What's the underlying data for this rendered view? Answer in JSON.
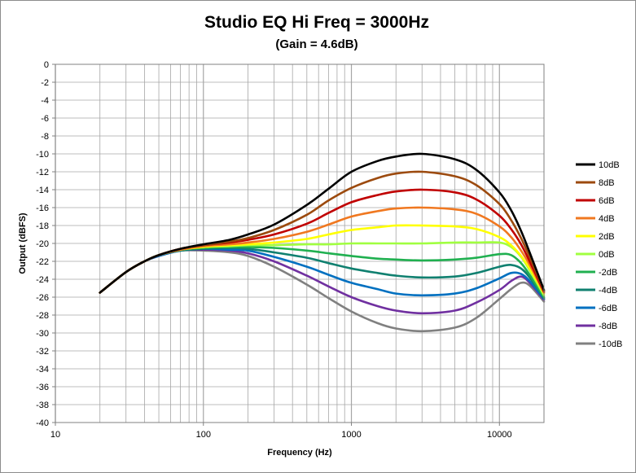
{
  "chart_data": {
    "type": "line",
    "title": "Studio EQ Hi Freq = 3000Hz",
    "subtitle": "(Gain = 4.6dB)",
    "xlabel": "Frequency (Hz)",
    "ylabel": "Output (dBFS)",
    "x_scale": "log",
    "xlim": [
      10,
      20000
    ],
    "ylim": [
      -40,
      0
    ],
    "x_ticks": [
      "10",
      "100",
      "1000",
      "10000"
    ],
    "y_ticks": [
      "0",
      "-2",
      "-4",
      "-6",
      "-8",
      "-10",
      "-12",
      "-14",
      "-16",
      "-18",
      "-20",
      "-22",
      "-24",
      "-26",
      "-28",
      "-30",
      "-32",
      "-34",
      "-36",
      "-38",
      "-40"
    ],
    "grid": true,
    "legend_position": "right",
    "x": [
      20,
      30,
      40,
      50,
      70,
      100,
      150,
      200,
      300,
      500,
      700,
      1000,
      1500,
      2000,
      3000,
      5000,
      7000,
      10000,
      12000,
      14000,
      16000,
      20000
    ],
    "series": [
      {
        "name": "10dB",
        "color": "#000000",
        "values": [
          -25.5,
          -23.2,
          -22.0,
          -21.3,
          -20.6,
          -20.1,
          -19.6,
          -19.0,
          -17.9,
          -15.7,
          -13.9,
          -12.0,
          -10.8,
          -10.3,
          -10.0,
          -10.6,
          -11.8,
          -14.3,
          -16.3,
          -18.6,
          -21.0,
          -25.2
        ]
      },
      {
        "name": "8dB",
        "color": "#9c4a0e",
        "values": [
          -25.5,
          -23.2,
          -22.0,
          -21.3,
          -20.6,
          -20.2,
          -19.8,
          -19.4,
          -18.5,
          -16.8,
          -15.2,
          -13.8,
          -12.7,
          -12.2,
          -12.0,
          -12.5,
          -13.5,
          -15.6,
          -17.4,
          -19.4,
          -21.5,
          -25.3
        ]
      },
      {
        "name": "6dB",
        "color": "#c00000",
        "values": [
          -25.5,
          -23.2,
          -22.0,
          -21.3,
          -20.6,
          -20.2,
          -19.9,
          -19.6,
          -19.0,
          -17.8,
          -16.6,
          -15.4,
          -14.6,
          -14.2,
          -14.0,
          -14.3,
          -15.1,
          -16.9,
          -18.4,
          -20.1,
          -22.0,
          -25.4
        ]
      },
      {
        "name": "4dB",
        "color": "#f07820",
        "values": [
          -25.5,
          -23.2,
          -22.0,
          -21.3,
          -20.7,
          -20.3,
          -20.1,
          -19.9,
          -19.5,
          -18.7,
          -17.9,
          -17.0,
          -16.4,
          -16.1,
          -16.0,
          -16.2,
          -16.7,
          -18.1,
          -19.3,
          -20.8,
          -22.4,
          -25.5
        ]
      },
      {
        "name": "2dB",
        "color": "#ffff00",
        "values": [
          -25.5,
          -23.2,
          -22.0,
          -21.3,
          -20.7,
          -20.4,
          -20.2,
          -20.1,
          -19.9,
          -19.5,
          -19.0,
          -18.5,
          -18.2,
          -18.0,
          -18.0,
          -18.1,
          -18.4,
          -19.3,
          -20.2,
          -21.4,
          -22.8,
          -25.6
        ]
      },
      {
        "name": "0dB",
        "color": "#a0ff40",
        "values": [
          -25.5,
          -23.2,
          -22.0,
          -21.3,
          -20.7,
          -20.4,
          -20.3,
          -20.2,
          -20.2,
          -20.1,
          -20.1,
          -20.0,
          -20.0,
          -20.0,
          -20.0,
          -19.9,
          -19.9,
          -19.9,
          -20.4,
          -21.5,
          -23.0,
          -25.8
        ]
      },
      {
        "name": "-2dB",
        "color": "#20b050",
        "values": [
          -25.5,
          -23.2,
          -22.0,
          -21.3,
          -20.7,
          -20.5,
          -20.4,
          -20.4,
          -20.5,
          -20.8,
          -21.1,
          -21.4,
          -21.7,
          -21.8,
          -21.9,
          -21.8,
          -21.6,
          -21.2,
          -21.3,
          -22.2,
          -23.5,
          -26.0
        ]
      },
      {
        "name": "-4dB",
        "color": "#108070",
        "values": [
          -25.5,
          -23.2,
          -22.0,
          -21.3,
          -20.8,
          -20.6,
          -20.5,
          -20.6,
          -21.0,
          -21.6,
          -22.2,
          -22.8,
          -23.3,
          -23.6,
          -23.8,
          -23.7,
          -23.3,
          -22.6,
          -22.4,
          -22.8,
          -23.8,
          -26.1
        ]
      },
      {
        "name": "-6dB",
        "color": "#0070c0",
        "values": [
          -25.5,
          -23.2,
          -22.0,
          -21.4,
          -20.8,
          -20.6,
          -20.7,
          -20.8,
          -21.5,
          -22.6,
          -23.5,
          -24.4,
          -25.1,
          -25.6,
          -25.8,
          -25.6,
          -25.0,
          -23.9,
          -23.3,
          -23.4,
          -24.2,
          -26.2
        ]
      },
      {
        "name": "-8dB",
        "color": "#7030a0",
        "values": [
          -25.5,
          -23.2,
          -22.0,
          -21.4,
          -20.8,
          -20.7,
          -20.8,
          -21.1,
          -22.0,
          -23.6,
          -24.8,
          -26.0,
          -27.0,
          -27.5,
          -27.8,
          -27.5,
          -26.6,
          -25.2,
          -24.2,
          -23.7,
          -24.4,
          -26.3
        ]
      },
      {
        "name": "-10dB",
        "color": "#808080",
        "values": [
          -25.5,
          -23.2,
          -22.0,
          -21.4,
          -20.8,
          -20.8,
          -21.0,
          -21.4,
          -22.6,
          -24.6,
          -26.1,
          -27.6,
          -28.9,
          -29.5,
          -29.8,
          -29.4,
          -28.3,
          -26.2,
          -25.1,
          -24.4,
          -24.7,
          -26.5
        ]
      }
    ]
  }
}
